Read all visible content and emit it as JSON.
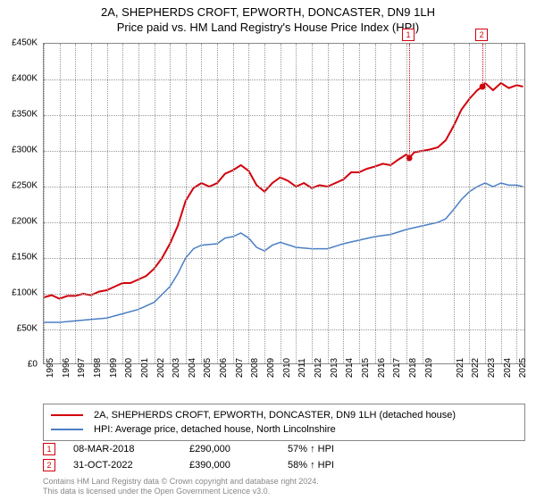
{
  "title": {
    "line1": "2A, SHEPHERDS CROFT, EPWORTH, DONCASTER, DN9 1LH",
    "line2": "Price paid vs. HM Land Registry's House Price Index (HPI)"
  },
  "chart": {
    "type": "line",
    "background_color": "#ffffff",
    "grid_color": "#999999",
    "axis_color": "#888888",
    "label_fontsize": 10,
    "ylim": [
      0,
      450000
    ],
    "ytick_step": 50000,
    "yticks": [
      {
        "v": 0,
        "label": "£0"
      },
      {
        "v": 50000,
        "label": "£50K"
      },
      {
        "v": 100000,
        "label": "£100K"
      },
      {
        "v": 150000,
        "label": "£150K"
      },
      {
        "v": 200000,
        "label": "£200K"
      },
      {
        "v": 250000,
        "label": "£250K"
      },
      {
        "v": 300000,
        "label": "£300K"
      },
      {
        "v": 350000,
        "label": "£350K"
      },
      {
        "v": 400000,
        "label": "£400K"
      },
      {
        "v": 450000,
        "label": "£450K"
      }
    ],
    "xlim": [
      1995,
      2025.6
    ],
    "xticks": [
      1995,
      1996,
      1997,
      1998,
      1999,
      2000,
      2001,
      2002,
      2003,
      2004,
      2005,
      2006,
      2007,
      2008,
      2009,
      2010,
      2011,
      2012,
      2013,
      2014,
      2015,
      2016,
      2017,
      2018,
      2019,
      2021,
      2022,
      2023,
      2024,
      2025
    ],
    "series": [
      {
        "name": "property",
        "label": "2A, SHEPHERDS CROFT, EPWORTH, DONCASTER, DN9 1LH (detached house)",
        "color": "#d3000b",
        "line_width": 2,
        "points": [
          [
            1995,
            95000
          ],
          [
            1995.5,
            98000
          ],
          [
            1996,
            93000
          ],
          [
            1996.5,
            97000
          ],
          [
            1997,
            97000
          ],
          [
            1997.5,
            100000
          ],
          [
            1998,
            98000
          ],
          [
            1998.5,
            103000
          ],
          [
            1999,
            105000
          ],
          [
            1999.5,
            110000
          ],
          [
            2000,
            115000
          ],
          [
            2000.5,
            115000
          ],
          [
            2001,
            120000
          ],
          [
            2001.5,
            125000
          ],
          [
            2002,
            135000
          ],
          [
            2002.5,
            150000
          ],
          [
            2003,
            170000
          ],
          [
            2003.5,
            195000
          ],
          [
            2004,
            230000
          ],
          [
            2004.5,
            248000
          ],
          [
            2005,
            255000
          ],
          [
            2005.5,
            250000
          ],
          [
            2006,
            255000
          ],
          [
            2006.5,
            268000
          ],
          [
            2007,
            273000
          ],
          [
            2007.5,
            280000
          ],
          [
            2008,
            272000
          ],
          [
            2008.5,
            252000
          ],
          [
            2009,
            243000
          ],
          [
            2009.5,
            255000
          ],
          [
            2010,
            263000
          ],
          [
            2010.5,
            258000
          ],
          [
            2011,
            250000
          ],
          [
            2011.5,
            255000
          ],
          [
            2012,
            248000
          ],
          [
            2012.5,
            252000
          ],
          [
            2013,
            250000
          ],
          [
            2013.5,
            255000
          ],
          [
            2014,
            260000
          ],
          [
            2014.5,
            270000
          ],
          [
            2015,
            270000
          ],
          [
            2015.5,
            275000
          ],
          [
            2016,
            278000
          ],
          [
            2016.5,
            282000
          ],
          [
            2017,
            280000
          ],
          [
            2017.5,
            288000
          ],
          [
            2018,
            295000
          ],
          [
            2018.18,
            290000
          ],
          [
            2018.5,
            298000
          ],
          [
            2019,
            300000
          ],
          [
            2019.5,
            302000
          ],
          [
            2020,
            305000
          ],
          [
            2020.5,
            315000
          ],
          [
            2021,
            335000
          ],
          [
            2021.5,
            358000
          ],
          [
            2022,
            373000
          ],
          [
            2022.5,
            385000
          ],
          [
            2022.83,
            390000
          ],
          [
            2023,
            395000
          ],
          [
            2023.5,
            385000
          ],
          [
            2024,
            395000
          ],
          [
            2024.5,
            388000
          ],
          [
            2025,
            392000
          ],
          [
            2025.4,
            390000
          ]
        ]
      },
      {
        "name": "hpi",
        "label": "HPI: Average price, detached house, North Lincolnshire",
        "color": "#4a7fc5",
        "line_width": 1.5,
        "points": [
          [
            1995,
            60000
          ],
          [
            1996,
            60000
          ],
          [
            1997,
            62000
          ],
          [
            1998,
            64000
          ],
          [
            1999,
            66000
          ],
          [
            2000,
            72000
          ],
          [
            2001,
            78000
          ],
          [
            2002,
            88000
          ],
          [
            2003,
            110000
          ],
          [
            2003.5,
            128000
          ],
          [
            2004,
            150000
          ],
          [
            2004.5,
            163000
          ],
          [
            2005,
            168000
          ],
          [
            2006,
            170000
          ],
          [
            2006.5,
            178000
          ],
          [
            2007,
            180000
          ],
          [
            2007.5,
            185000
          ],
          [
            2008,
            178000
          ],
          [
            2008.5,
            165000
          ],
          [
            2009,
            160000
          ],
          [
            2009.5,
            168000
          ],
          [
            2010,
            172000
          ],
          [
            2011,
            165000
          ],
          [
            2012,
            163000
          ],
          [
            2013,
            163000
          ],
          [
            2014,
            170000
          ],
          [
            2015,
            175000
          ],
          [
            2016,
            180000
          ],
          [
            2017,
            183000
          ],
          [
            2018,
            190000
          ],
          [
            2019,
            195000
          ],
          [
            2020,
            200000
          ],
          [
            2020.5,
            205000
          ],
          [
            2021,
            218000
          ],
          [
            2021.5,
            232000
          ],
          [
            2022,
            243000
          ],
          [
            2022.5,
            250000
          ],
          [
            2023,
            255000
          ],
          [
            2023.5,
            250000
          ],
          [
            2024,
            255000
          ],
          [
            2024.5,
            252000
          ],
          [
            2025,
            252000
          ],
          [
            2025.4,
            250000
          ]
        ]
      }
    ]
  },
  "markers": [
    {
      "n": "1",
      "x": 2018.18,
      "y": 290000,
      "color": "#d3000b"
    },
    {
      "n": "2",
      "x": 2022.83,
      "y": 390000,
      "color": "#d3000b"
    }
  ],
  "sales": [
    {
      "n": "1",
      "date": "08-MAR-2018",
      "price": "£290,000",
      "pct": "57%",
      "arrow": "↑",
      "vs": "HPI",
      "color": "#d3000b"
    },
    {
      "n": "2",
      "date": "31-OCT-2022",
      "price": "£390,000",
      "pct": "58%",
      "arrow": "↑",
      "vs": "HPI",
      "color": "#d3000b"
    }
  ],
  "footer": {
    "line1": "Contains HM Land Registry data © Crown copyright and database right 2024.",
    "line2": "This data is licensed under the Open Government Licence v3.0."
  }
}
